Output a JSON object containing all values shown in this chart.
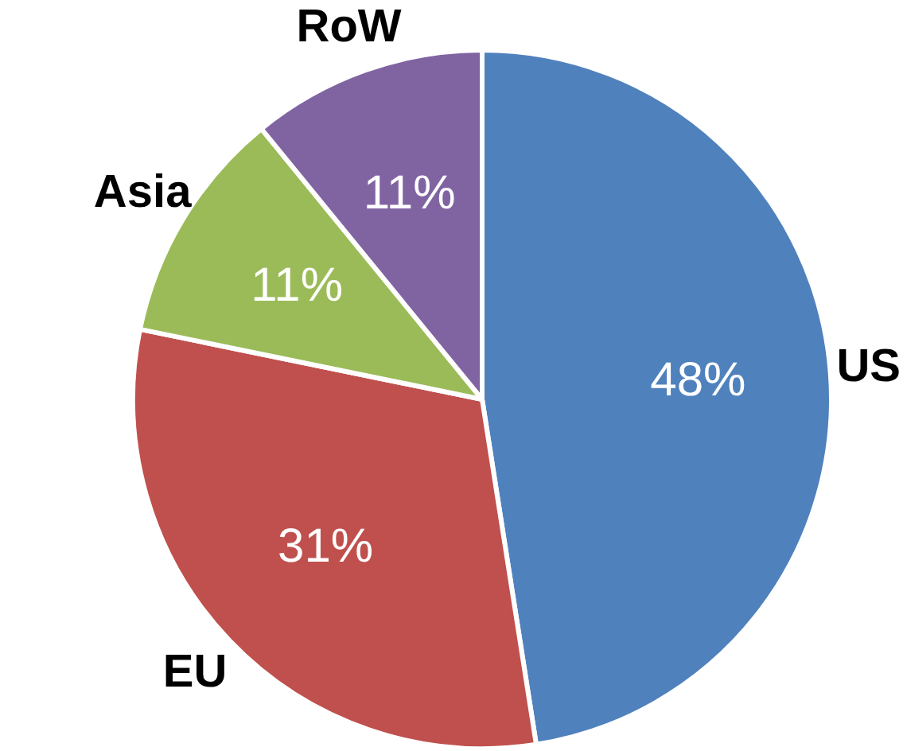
{
  "chart_data": {
    "type": "pie",
    "categories": [
      "US",
      "EU",
      "Asia",
      "RoW"
    ],
    "values": [
      48,
      31,
      11,
      11
    ],
    "value_labels": [
      "48%",
      "31%",
      "11%",
      "11%"
    ],
    "colors": [
      "#4f81bd",
      "#c0504d",
      "#9bbb59",
      "#8064a2"
    ],
    "legend": false
  }
}
